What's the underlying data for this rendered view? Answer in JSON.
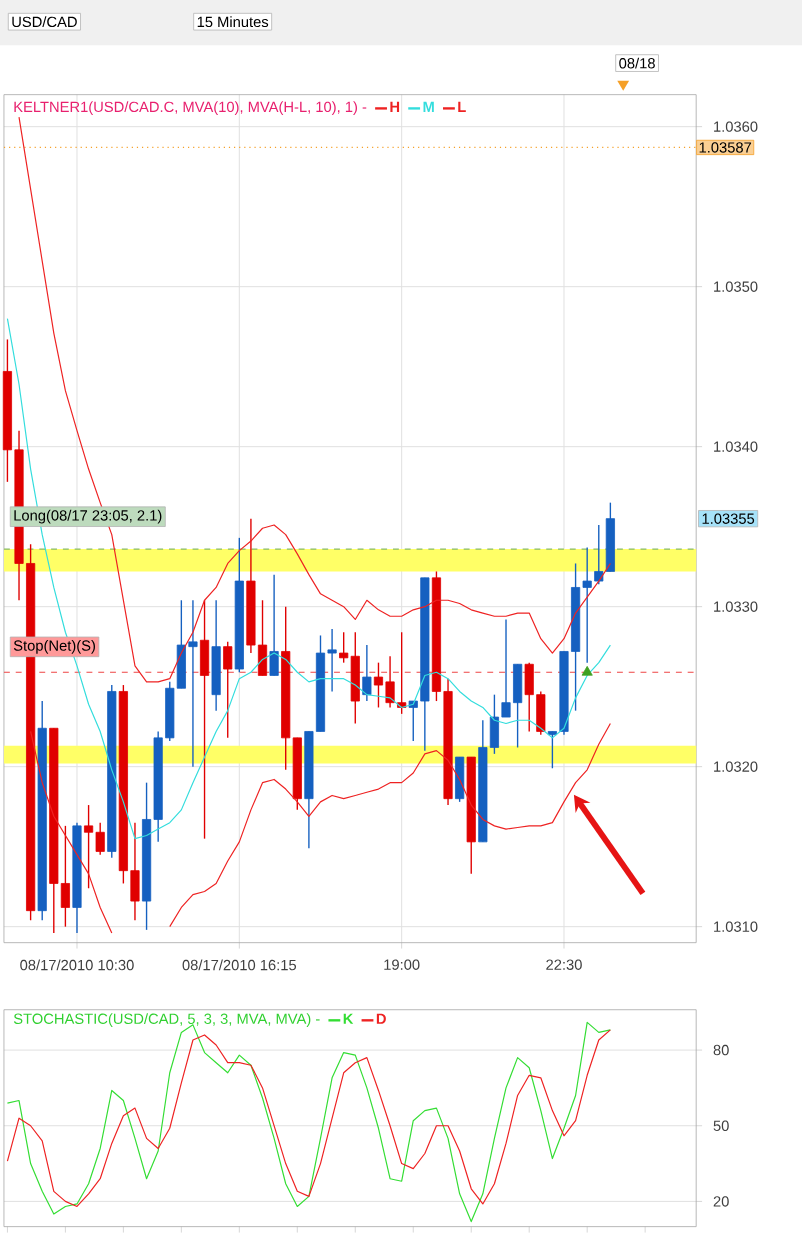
{
  "chart_data": [
    {
      "type": "candlestick",
      "title": "KELTNER1(USD/CAD.C, MVA(10), MVA(H-L, 10), 1) -",
      "categories": [
        null,
        null,
        null,
        null,
        null,
        null,
        "08/17/2010 10:30",
        null,
        null,
        null,
        null,
        null,
        null,
        null,
        null,
        null,
        null,
        null,
        null,
        null,
        "08/17/2010 16:15",
        null,
        null,
        null,
        null,
        null,
        null,
        null,
        null,
        null,
        null,
        null,
        null,
        null,
        "19:00",
        null,
        null,
        null,
        null,
        null,
        null,
        null,
        null,
        null,
        null,
        null,
        null,
        null,
        "22:30",
        null,
        null,
        null,
        null
      ],
      "ohlc": [
        [
          1.03447,
          1.03467,
          1.03378,
          1.03398
        ],
        [
          1.03398,
          1.0341,
          1.03304,
          1.03327
        ],
        [
          1.03327,
          1.03339,
          1.03104,
          1.0311
        ],
        [
          1.0311,
          1.03241,
          1.03104,
          1.03224
        ],
        [
          1.03224,
          1.03224,
          1.03096,
          1.03127
        ],
        [
          1.03127,
          1.03163,
          1.031,
          1.03112
        ],
        [
          1.03112,
          1.03165,
          1.03096,
          1.03163
        ],
        [
          1.03163,
          1.03176,
          1.03124,
          1.03159
        ],
        [
          1.03159,
          1.03165,
          1.03145,
          1.03147
        ],
        [
          1.03147,
          1.03251,
          1.03143,
          1.03247
        ],
        [
          1.03247,
          1.03251,
          1.03127,
          1.03135
        ],
        [
          1.03135,
          1.03165,
          1.03104,
          1.03116
        ],
        [
          1.03116,
          1.0319,
          1.03098,
          1.03167
        ],
        [
          1.03167,
          1.03222,
          1.03153,
          1.03218
        ],
        [
          1.03218,
          1.03253,
          1.03216,
          1.03249
        ],
        [
          1.03249,
          1.03304,
          1.03249,
          1.03276
        ],
        [
          1.03275,
          1.03304,
          1.032,
          1.03278
        ],
        [
          1.03279,
          1.03304,
          1.03155,
          1.03257
        ],
        [
          1.03245,
          1.03304,
          1.03235,
          1.03275
        ],
        [
          1.03275,
          1.03278,
          1.03218,
          1.03261
        ],
        [
          1.03261,
          1.03343,
          1.03259,
          1.03316
        ],
        [
          1.03316,
          1.03355,
          1.03271,
          1.03276
        ],
        [
          1.03276,
          1.03304,
          1.03257,
          1.03257
        ],
        [
          1.03257,
          1.0332,
          1.03257,
          1.03272
        ],
        [
          1.03272,
          1.033,
          1.03198,
          1.03218
        ],
        [
          1.03218,
          1.03218,
          1.03173,
          1.0318
        ],
        [
          1.0318,
          1.03222,
          1.03149,
          1.03222
        ],
        [
          1.03222,
          1.03282,
          1.03222,
          1.03271
        ],
        [
          1.03271,
          1.03286,
          1.03247,
          1.03273
        ],
        [
          1.03271,
          1.03284,
          1.03265,
          1.03268
        ],
        [
          1.03269,
          1.03284,
          1.03227,
          1.03241
        ],
        [
          1.03245,
          1.03276,
          1.03241,
          1.03256
        ],
        [
          1.03256,
          1.03265,
          1.03237,
          1.03251
        ],
        [
          1.03253,
          1.03269,
          1.03237,
          1.0324
        ],
        [
          1.0324,
          1.03284,
          1.03233,
          1.03237
        ],
        [
          1.03237,
          1.03241,
          1.03216,
          1.03241
        ],
        [
          1.03241,
          1.03318,
          1.0321,
          1.03318
        ],
        [
          1.03318,
          1.03322,
          1.03241,
          1.03247
        ],
        [
          1.03247,
          1.03255,
          1.03176,
          1.0318
        ],
        [
          1.0318,
          1.03206,
          1.03178,
          1.03206
        ],
        [
          1.03206,
          1.03206,
          1.03133,
          1.03153
        ],
        [
          1.03153,
          1.03229,
          1.03153,
          1.03212
        ],
        [
          1.03212,
          1.03245,
          1.03208,
          1.03231
        ],
        [
          1.03231,
          1.03292,
          1.03231,
          1.0324
        ],
        [
          1.0324,
          1.03264,
          1.03212,
          1.03264
        ],
        [
          1.03264,
          1.03265,
          1.03222,
          1.03245
        ],
        [
          1.03245,
          1.03247,
          1.0322,
          1.03222
        ],
        [
          1.0322,
          1.03222,
          1.03199,
          1.03222
        ],
        [
          1.03222,
          1.03272,
          1.0322,
          1.03272
        ],
        [
          1.03272,
          1.03327,
          1.03235,
          1.03312
        ],
        [
          1.03312,
          1.03337,
          1.03265,
          1.03316
        ],
        [
          1.03316,
          1.03351,
          1.03314,
          1.03322
        ],
        [
          1.03322,
          1.03365,
          1.03322,
          1.03355
        ]
      ],
      "colors": [
        "#e00000",
        "#e00000",
        "#e00000",
        "#1560c0",
        "#e00000",
        "#e00000",
        "#1560c0",
        "#e00000",
        "#e00000",
        "#1560c0",
        "#e00000",
        "#e00000",
        "#1560c0",
        "#1560c0",
        "#1560c0",
        "#1560c0",
        "#1560c0",
        "#e00000",
        "#1560c0",
        "#e00000",
        "#1560c0",
        "#e00000",
        "#e00000",
        "#1560c0",
        "#e00000",
        "#e00000",
        "#1560c0",
        "#1560c0",
        "#1560c0",
        "#e00000",
        "#e00000",
        "#1560c0",
        "#e00000",
        "#e00000",
        "#e00000",
        "#1560c0",
        "#1560c0",
        "#e00000",
        "#e00000",
        "#1560c0",
        "#e00000",
        "#1560c0",
        "#1560c0",
        "#1560c0",
        "#1560c0",
        "#e00000",
        "#e00000",
        "#1560c0",
        "#1560c0",
        "#1560c0",
        "#1560c0",
        "#1560c0",
        "#1560c0"
      ],
      "series": [
        {
          "name": "H",
          "type": "line",
          "color": "#ee2222",
          "values": [
            null,
            1.03606,
            1.03561,
            1.03516,
            1.03471,
            1.03435,
            1.0341,
            1.03386,
            1.03365,
            1.03345,
            1.03304,
            1.03263,
            1.03253,
            1.03253,
            1.03255,
            1.03271,
            1.03284,
            1.03304,
            1.03312,
            1.03327,
            1.03335,
            1.03341,
            1.03349,
            1.03351,
            1.03345,
            1.03333,
            1.0332,
            1.03308,
            1.03304,
            1.033,
            1.03292,
            1.03304,
            1.03298,
            1.03294,
            1.03294,
            1.03298,
            1.033,
            1.03304,
            1.03304,
            1.03302,
            1.03298,
            1.03296,
            1.03294,
            1.03294,
            1.03296,
            1.03296,
            1.0328,
            1.03271,
            1.0328,
            1.03296,
            1.03306,
            1.03316,
            1.03327
          ]
        },
        {
          "name": "M",
          "type": "line",
          "color": "#33dddd",
          "values": [
            1.0348,
            1.03439,
            1.03386,
            1.03345,
            1.03312,
            1.03284,
            1.03263,
            1.03239,
            1.03222,
            1.03198,
            1.03178,
            1.03155,
            1.03157,
            1.03161,
            1.03165,
            1.03173,
            1.0319,
            1.03206,
            1.03222,
            1.03235,
            1.03255,
            1.03259,
            1.03267,
            1.03271,
            1.03267,
            1.03259,
            1.03253,
            1.03255,
            1.03255,
            1.03255,
            1.03251,
            1.03245,
            1.03244,
            1.03243,
            1.03237,
            1.03239,
            1.03257,
            1.03259,
            1.03255,
            1.03247,
            1.03241,
            1.03237,
            1.03229,
            1.03227,
            1.03229,
            1.03229,
            1.03224,
            1.03218,
            1.03224,
            1.03243,
            1.03257,
            1.03265,
            1.03276
          ]
        },
        {
          "name": "L",
          "type": "line",
          "color": "#ee2222",
          "values": [
            null,
            null,
            1.03222,
            1.0319,
            1.03169,
            1.03157,
            1.03145,
            1.03133,
            1.03112,
            1.03096,
            null,
            null,
            null,
            null,
            1.031,
            1.03112,
            1.0312,
            1.03122,
            1.03127,
            1.03141,
            1.03153,
            1.03173,
            1.0319,
            1.03192,
            1.03186,
            1.03178,
            1.03169,
            1.03178,
            1.03182,
            1.0318,
            1.03182,
            1.03184,
            1.03186,
            1.0319,
            1.0319,
            1.03196,
            1.03208,
            1.0321,
            1.03204,
            1.03192,
            1.03176,
            1.03167,
            1.03163,
            1.03161,
            1.03162,
            1.03163,
            1.03163,
            1.03165,
            1.03178,
            1.0319,
            1.03198,
            1.03214,
            1.03227
          ]
        },
        {
          "type": "scatter",
          "marker": "triangle",
          "color": "#40a020",
          "values": [
            null,
            null,
            null,
            null,
            null,
            null,
            null,
            null,
            null,
            null,
            null,
            null,
            null,
            null,
            null,
            null,
            null,
            null,
            null,
            null,
            null,
            null,
            null,
            null,
            null,
            null,
            null,
            null,
            null,
            null,
            null,
            null,
            null,
            null,
            null,
            null,
            null,
            null,
            null,
            null,
            null,
            null,
            null,
            null,
            null,
            null,
            null,
            null,
            null,
            null,
            1.03259,
            null,
            null
          ]
        }
      ],
      "ylim": [
        1.0309,
        1.0362
      ],
      "yticks": [
        {
          "value": 1.031,
          "label": "1.0310"
        },
        {
          "value": 1.032,
          "label": "1.0320"
        },
        {
          "value": 1.033,
          "label": "1.0330"
        },
        {
          "value": 1.034,
          "label": "1.0340"
        },
        {
          "value": 1.035,
          "label": "1.0350"
        },
        {
          "value": 1.036,
          "label": "1.0360"
        }
      ],
      "grid": true,
      "legend": "top",
      "bands": [
        {
          "axis": "y",
          "from": 1.03322,
          "to": 1.03336,
          "color": "#ffff66"
        },
        {
          "axis": "y",
          "from": 1.03202,
          "to": 1.03213,
          "color": "#ffff66"
        }
      ],
      "ref_lines": [
        {
          "axis": "y",
          "value": 1.03336,
          "color": "#88bb66",
          "line_style": "dashed"
        },
        {
          "axis": "y",
          "value": 1.03259,
          "color": "#ee4444",
          "line_style": "dashed"
        },
        {
          "axis": "y",
          "value": 1.03587,
          "label": "1.03587",
          "color": "#f5a028",
          "line_style": "dotted"
        }
      ],
      "annotations": [
        "USD/CAD",
        "15 Minutes",
        "08/18",
        "1.03355",
        "Long(08/17 23:05, 2.1)",
        "Stop(Net)(S)"
      ]
    },
    {
      "type": "line",
      "title": "STOCHASTIC(USD/CAD, 5, 3, 3, MVA, MVA) -",
      "categories": [
        null,
        null,
        null,
        null,
        null,
        null,
        null,
        null,
        null,
        null,
        null,
        null,
        null,
        null,
        null,
        null,
        null,
        null,
        null,
        null,
        null,
        null,
        null,
        null,
        null,
        null,
        null,
        null,
        null,
        null,
        null,
        null,
        null,
        null,
        null,
        null,
        null,
        null,
        null,
        null,
        null,
        null,
        null,
        null,
        null,
        null,
        null,
        null,
        null,
        null,
        null,
        null,
        null
      ],
      "series": [
        {
          "name": "K",
          "color": "#33dd33",
          "values": [
            59,
            60,
            35,
            24,
            15,
            18,
            19,
            27,
            41,
            64,
            60,
            45,
            29,
            40,
            71,
            87,
            90,
            79,
            75,
            71,
            78,
            74,
            61,
            45,
            27,
            18,
            22,
            45,
            69,
            79,
            78,
            65,
            49,
            29,
            28,
            52,
            56,
            57,
            45,
            23,
            12,
            23,
            45,
            65,
            77,
            73,
            56,
            37,
            49,
            62,
            91,
            87,
            88
          ]
        },
        {
          "name": "D",
          "color": "#ee2222",
          "values": [
            36,
            53,
            50,
            44,
            24,
            20,
            18,
            23,
            29,
            43,
            54,
            57,
            45,
            41,
            49,
            67,
            84,
            86,
            82,
            75,
            75,
            74,
            65,
            50,
            35,
            24,
            22,
            35,
            53,
            71,
            75,
            77,
            64,
            50,
            35,
            33,
            39,
            50,
            50,
            40,
            25,
            19,
            27,
            43,
            62,
            70,
            69,
            56,
            46,
            52,
            70,
            84,
            88
          ]
        }
      ],
      "ylim": [
        10,
        96
      ],
      "yticks": [
        20,
        50,
        80
      ],
      "grid": "y",
      "legend": "top",
      "tick_labels": "y"
    }
  ]
}
